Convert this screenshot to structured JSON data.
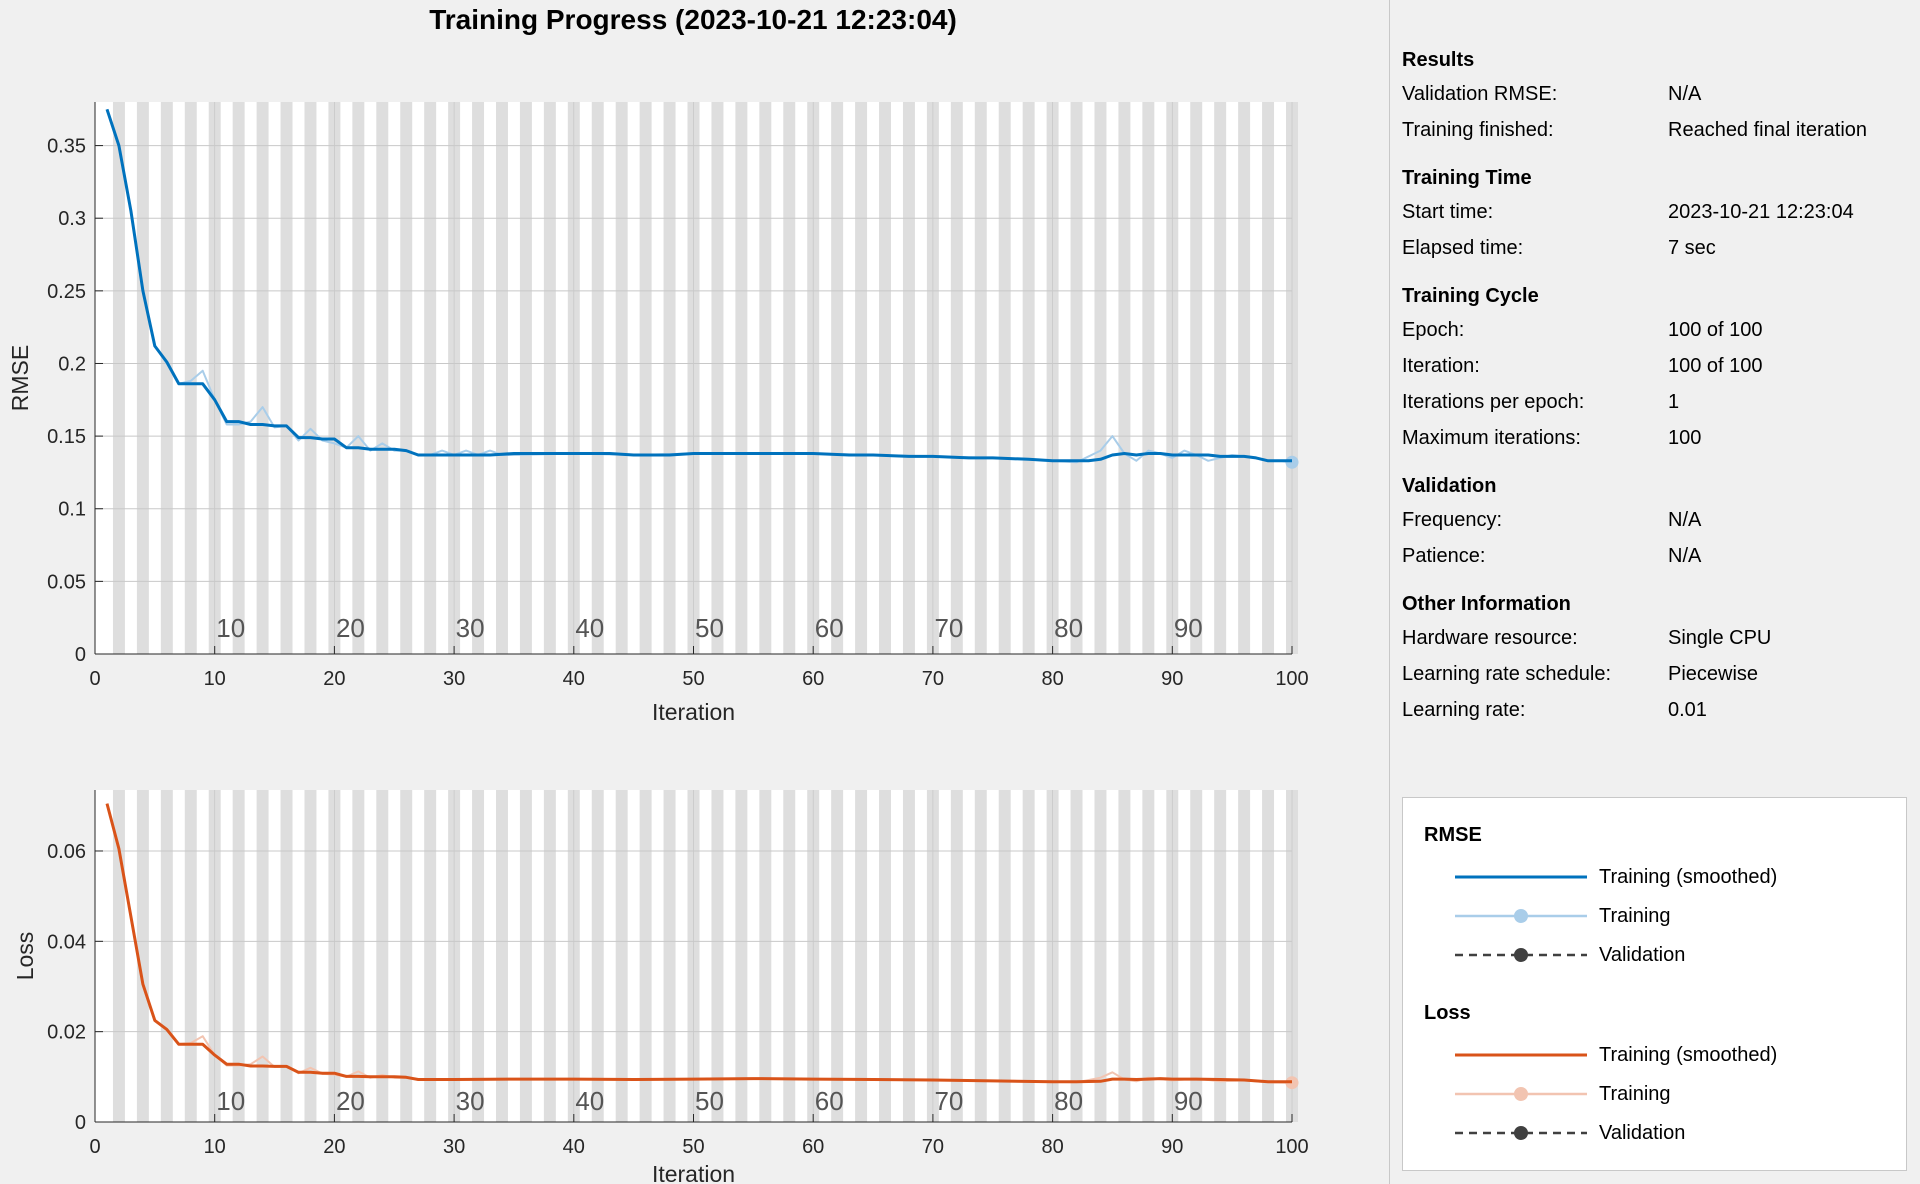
{
  "window_title": "Training Progress (2023-10-21 12:23:04)",
  "colors": {
    "rmse_smoothed": "#0072bd",
    "rmse_training": "#a9cde9",
    "loss_smoothed": "#d95319",
    "loss_training": "#f2c4b1",
    "validation": "#404040",
    "epoch_stripe": "#dedede"
  },
  "info": {
    "sections": [
      {
        "title": "Results",
        "rows": [
          {
            "k": "Validation RMSE:",
            "v": "N/A"
          },
          {
            "k": "Training finished:",
            "v": "Reached final iteration"
          }
        ]
      },
      {
        "title": "Training Time",
        "rows": [
          {
            "k": "Start time:",
            "v": "2023-10-21 12:23:04"
          },
          {
            "k": "Elapsed time:",
            "v": "7 sec"
          }
        ]
      },
      {
        "title": "Training Cycle",
        "rows": [
          {
            "k": "Epoch:",
            "v": "100 of 100"
          },
          {
            "k": "Iteration:",
            "v": "100 of 100"
          },
          {
            "k": "Iterations per epoch:",
            "v": "1"
          },
          {
            "k": "Maximum iterations:",
            "v": "100"
          }
        ]
      },
      {
        "title": "Validation",
        "rows": [
          {
            "k": "Frequency:",
            "v": "N/A"
          },
          {
            "k": "Patience:",
            "v": "N/A"
          }
        ]
      },
      {
        "title": "Other Information",
        "rows": [
          {
            "k": "Hardware resource:",
            "v": "Single CPU"
          },
          {
            "k": "Learning rate schedule:",
            "v": "Piecewise"
          },
          {
            "k": "Learning rate:",
            "v": "0.01"
          }
        ]
      }
    ]
  },
  "legend": {
    "rmse_title": "RMSE",
    "loss_title": "Loss",
    "smoothed": "Training (smoothed)",
    "training": "Training",
    "validation": "Validation"
  },
  "chart_data": [
    {
      "type": "line",
      "ylabel": "RMSE",
      "xlabel": "Iteration",
      "xlim": [
        0,
        100
      ],
      "ylim": [
        0,
        0.38
      ],
      "yticks": [
        0,
        0.05,
        0.1,
        0.15,
        0.2,
        0.25,
        0.3,
        0.35
      ],
      "ytick_labels": [
        "0",
        "0.05",
        "0.1",
        "0.15",
        "0.2",
        "0.25",
        "0.3",
        "0.35"
      ],
      "xticks": [
        0,
        10,
        20,
        30,
        40,
        50,
        60,
        70,
        80,
        90,
        100
      ],
      "epoch_labels": [
        "10",
        "20",
        "30",
        "40",
        "50",
        "60",
        "70",
        "80",
        "90"
      ],
      "grid": true,
      "series": [
        {
          "name": "Training (smoothed)",
          "key": "smoothed",
          "x": [
            1,
            2,
            3,
            4,
            5,
            6,
            7,
            8,
            9,
            10,
            11,
            12,
            13,
            14,
            15,
            16,
            17,
            18,
            19,
            20,
            21,
            22,
            23,
            24,
            25,
            26,
            27,
            28,
            30,
            33,
            35,
            38,
            40,
            43,
            45,
            48,
            50,
            53,
            55,
            58,
            60,
            63,
            65,
            68,
            70,
            73,
            75,
            78,
            80,
            82,
            83,
            84,
            85,
            86,
            87,
            88,
            89,
            90,
            91,
            92,
            93,
            94,
            95,
            96,
            97,
            98,
            99,
            100
          ],
          "y": [
            0.375,
            0.35,
            0.305,
            0.25,
            0.212,
            0.201,
            0.186,
            0.186,
            0.186,
            0.175,
            0.16,
            0.16,
            0.158,
            0.158,
            0.157,
            0.157,
            0.149,
            0.149,
            0.148,
            0.148,
            0.142,
            0.142,
            0.141,
            0.141,
            0.141,
            0.14,
            0.137,
            0.137,
            0.137,
            0.137,
            0.138,
            0.138,
            0.138,
            0.138,
            0.137,
            0.137,
            0.138,
            0.138,
            0.138,
            0.138,
            0.138,
            0.137,
            0.137,
            0.136,
            0.136,
            0.135,
            0.135,
            0.134,
            0.133,
            0.133,
            0.133,
            0.134,
            0.137,
            0.138,
            0.137,
            0.138,
            0.138,
            0.137,
            0.137,
            0.137,
            0.137,
            0.136,
            0.136,
            0.136,
            0.135,
            0.133,
            0.133,
            0.133
          ]
        },
        {
          "name": "Training",
          "key": "training",
          "x": [
            1,
            2,
            3,
            4,
            5,
            6,
            7,
            8,
            9,
            10,
            11,
            12,
            13,
            14,
            15,
            16,
            17,
            18,
            19,
            20,
            21,
            22,
            23,
            24,
            25,
            26,
            27,
            28,
            29,
            30,
            31,
            32,
            33,
            34,
            35,
            40,
            45,
            50,
            55,
            60,
            65,
            70,
            75,
            80,
            82,
            84,
            85,
            86,
            87,
            88,
            89,
            90,
            91,
            92,
            93,
            94,
            95,
            96,
            97,
            98,
            99,
            100
          ],
          "y": [
            0.375,
            0.35,
            0.305,
            0.25,
            0.212,
            0.2,
            0.186,
            0.188,
            0.195,
            0.175,
            0.158,
            0.158,
            0.16,
            0.17,
            0.156,
            0.157,
            0.147,
            0.155,
            0.147,
            0.145,
            0.142,
            0.15,
            0.14,
            0.145,
            0.14,
            0.14,
            0.137,
            0.137,
            0.14,
            0.137,
            0.14,
            0.137,
            0.14,
            0.137,
            0.137,
            0.138,
            0.137,
            0.138,
            0.138,
            0.138,
            0.137,
            0.136,
            0.135,
            0.133,
            0.132,
            0.14,
            0.15,
            0.138,
            0.133,
            0.14,
            0.138,
            0.135,
            0.14,
            0.137,
            0.133,
            0.135,
            0.137,
            0.136,
            0.135,
            0.133,
            0.133,
            0.132
          ]
        }
      ]
    },
    {
      "type": "line",
      "ylabel": "Loss",
      "xlabel": "Iteration",
      "xlim": [
        0,
        100
      ],
      "ylim": [
        0,
        0.0735
      ],
      "yticks": [
        0,
        0.02,
        0.04,
        0.06
      ],
      "ytick_labels": [
        "0",
        "0.02",
        "0.04",
        "0.06"
      ],
      "xticks": [
        0,
        10,
        20,
        30,
        40,
        50,
        60,
        70,
        80,
        90,
        100
      ],
      "epoch_labels": [
        "10",
        "20",
        "30",
        "40",
        "50",
        "60",
        "70",
        "80",
        "90"
      ],
      "grid": true,
      "series": [
        {
          "name": "Training (smoothed)",
          "key": "smoothed",
          "x": [
            1,
            2,
            3,
            4,
            5,
            6,
            7,
            8,
            9,
            10,
            11,
            12,
            13,
            14,
            15,
            16,
            17,
            18,
            19,
            20,
            21,
            22,
            23,
            24,
            25,
            26,
            27,
            28,
            30,
            35,
            40,
            45,
            50,
            55,
            60,
            65,
            70,
            75,
            80,
            82,
            84,
            85,
            86,
            87,
            88,
            89,
            90,
            92,
            94,
            96,
            98,
            100
          ],
          "y": [
            0.0705,
            0.0605,
            0.0455,
            0.0305,
            0.0225,
            0.0205,
            0.0172,
            0.0172,
            0.0172,
            0.0148,
            0.0128,
            0.0128,
            0.0124,
            0.0124,
            0.0123,
            0.0123,
            0.011,
            0.011,
            0.0108,
            0.0108,
            0.0101,
            0.0101,
            0.01,
            0.01,
            0.01,
            0.0099,
            0.0094,
            0.0094,
            0.0094,
            0.0095,
            0.0095,
            0.0094,
            0.0095,
            0.0096,
            0.0095,
            0.0094,
            0.0093,
            0.0091,
            0.0089,
            0.0089,
            0.009,
            0.0095,
            0.0095,
            0.0094,
            0.0095,
            0.0096,
            0.0095,
            0.0095,
            0.0094,
            0.0093,
            0.0089,
            0.0089
          ]
        },
        {
          "name": "Training",
          "key": "training",
          "x": [
            1,
            2,
            3,
            4,
            5,
            6,
            7,
            8,
            9,
            10,
            11,
            12,
            13,
            14,
            15,
            16,
            17,
            18,
            19,
            20,
            21,
            22,
            23,
            24,
            25,
            26,
            27,
            28,
            30,
            35,
            40,
            45,
            50,
            55,
            60,
            65,
            70,
            75,
            80,
            82,
            84,
            85,
            86,
            87,
            88,
            89,
            90,
            92,
            94,
            96,
            98,
            100
          ],
          "y": [
            0.0705,
            0.0605,
            0.0455,
            0.0305,
            0.0225,
            0.0205,
            0.0172,
            0.0175,
            0.019,
            0.0148,
            0.0125,
            0.0125,
            0.0128,
            0.0145,
            0.0122,
            0.0123,
            0.0108,
            0.012,
            0.0107,
            0.0105,
            0.01,
            0.0112,
            0.0098,
            0.0104,
            0.0098,
            0.0098,
            0.0094,
            0.0094,
            0.0094,
            0.0095,
            0.0095,
            0.0094,
            0.0095,
            0.0096,
            0.0095,
            0.0094,
            0.0093,
            0.0091,
            0.0089,
            0.0088,
            0.0098,
            0.011,
            0.0094,
            0.009,
            0.0098,
            0.0095,
            0.0092,
            0.0096,
            0.009,
            0.0092,
            0.0088,
            0.0087
          ]
        }
      ]
    }
  ]
}
